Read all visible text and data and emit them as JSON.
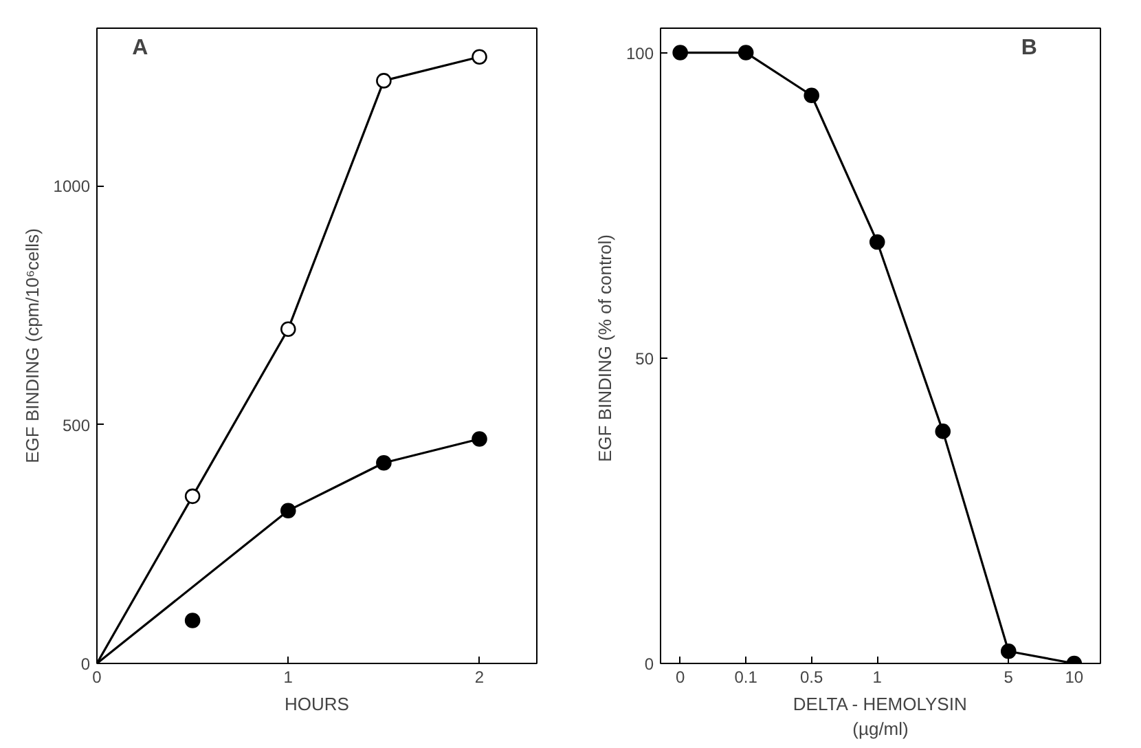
{
  "chart_data": [
    {
      "type": "line",
      "title": "A",
      "xlabel": "HOURS",
      "ylabel": "EGF BINDING (cpm/10⁶cells)",
      "xlim": [
        0,
        2.3
      ],
      "ylim": [
        0,
        1330
      ],
      "xticks": [
        0,
        1,
        2
      ],
      "yticks": [
        0,
        500,
        1000
      ],
      "series": [
        {
          "color": "#000000",
          "marker": "none",
          "x": [
            0,
            0.5,
            1,
            1.5,
            2
          ],
          "values": [
            0,
            350,
            700,
            1220,
            1270
          ]
        },
        {
          "type": "scatter",
          "color": "#ffffff",
          "marker": "circle",
          "x": [
            0.5,
            1,
            1.5,
            2
          ],
          "values": [
            350,
            700,
            1220,
            1270
          ]
        },
        {
          "color": "#000000",
          "marker": "none",
          "x": [
            0,
            1,
            1.5,
            2
          ],
          "values": [
            0,
            320,
            420,
            470
          ]
        },
        {
          "type": "scatter",
          "color": "#000000",
          "marker": "circle",
          "x": [
            0.5,
            1,
            1.5,
            2
          ],
          "values": [
            90,
            320,
            420,
            470
          ]
        }
      ]
    },
    {
      "type": "line",
      "title": "B",
      "xlabel": "DELTA - HEMOLYSIN\n(µg/ml)",
      "ylabel": "EGF BINDING  (% of control)",
      "categories": [
        "0",
        "0.1",
        "0.5",
        "1",
        null,
        "5",
        "10"
      ],
      "ylim": [
        0,
        104
      ],
      "yticks": [
        0,
        50,
        100
      ],
      "series": [
        {
          "color": "#000000",
          "marker": "circle",
          "values": [
            100,
            100,
            93,
            69,
            38,
            2,
            0
          ]
        }
      ]
    }
  ]
}
